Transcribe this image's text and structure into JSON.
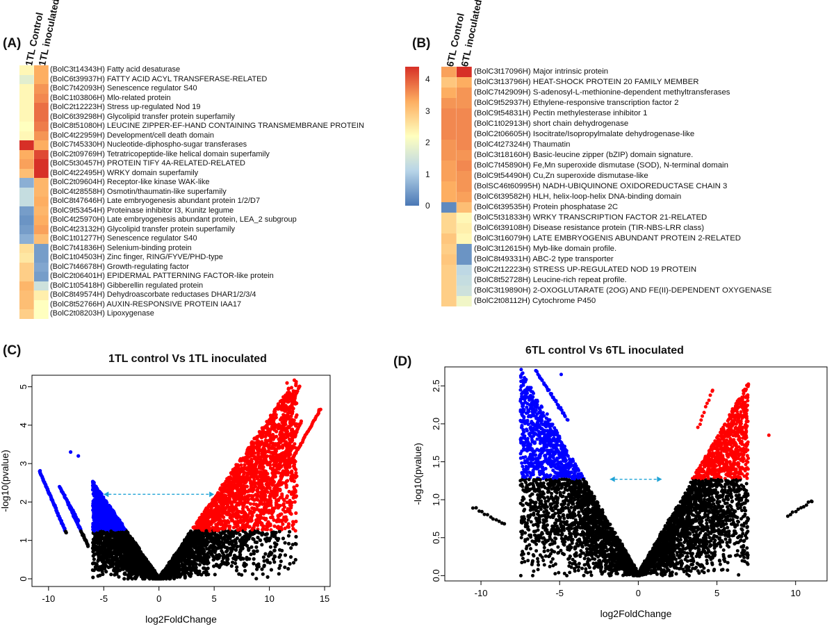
{
  "panelA": {
    "label": "(A)",
    "columns": [
      "1TL Control",
      "1TL inoculated"
    ],
    "rows": [
      {
        "name": "(BolC3t14343H) Fatty acid desaturase",
        "v": [
          2.1,
          3.0
        ]
      },
      {
        "name": "(BolC6t39937H) FATTY ACID ACYL TRANSFERASE-RELATED",
        "v": [
          1.6,
          3.0
        ]
      },
      {
        "name": "(BolC7t42093H) Senescence regulator S40",
        "v": [
          2.1,
          3.2
        ]
      },
      {
        "name": "(BolC1t03806H) Mlo-related protein",
        "v": [
          2.1,
          3.3
        ]
      },
      {
        "name": "(BolC2t12223H) Stress up-regulated Nod 19",
        "v": [
          2.1,
          3.5
        ]
      },
      {
        "name": "(BolC6t39298H) Glycolipid transfer protein superfamily",
        "v": [
          2.1,
          3.5
        ]
      },
      {
        "name": "(BolC8t51080H) LEUCINE ZIPPER-EF-HAND CONTAINING TRANSMEMBRANE PROTEIN",
        "v": [
          2.0,
          3.4
        ]
      },
      {
        "name": "(BolC4t22959H) Development/cell death domain",
        "v": [
          2.1,
          3.2
        ]
      },
      {
        "name": "(BolC7t45330H) Nucleotide-diphospho-sugar transferases",
        "v": [
          4.3,
          3.0
        ]
      },
      {
        "name": "(BolC2t09769H) Tetratricopeptide-like helical domain superfamily",
        "v": [
          3.0,
          3.8
        ]
      },
      {
        "name": "(BolC5t30457H) PROTEIN TIFY 4A-RELATED-RELATED",
        "v": [
          3.1,
          4.1
        ]
      },
      {
        "name": "(BolC4t22495H) WRKY domain superfamily",
        "v": [
          2.8,
          4.3
        ]
      },
      {
        "name": "(BolC2t09604H) Receptor-like kinase WAK-like",
        "v": [
          0.6,
          2.9
        ]
      },
      {
        "name": "(BolC4t28558H) Osmotin/thaumatin-like superfamily",
        "v": [
          1.2,
          2.9
        ]
      },
      {
        "name": "(BolC8t47646H) Late embryogenesis abundant protein 1/2/D7",
        "v": [
          1.2,
          3.0
        ]
      },
      {
        "name": "(BolC9t53454H) Proteinase inhibitor I3, Kunitz legume",
        "v": [
          0.4,
          2.9
        ]
      },
      {
        "name": "(BolC4t25970H) Late embryogenesis abundant protein, LEA_2 subgroup",
        "v": [
          0.3,
          3.0
        ]
      },
      {
        "name": "(BolC4t23132H) Glycolipid transfer protein superfamily",
        "v": [
          0.4,
          3.1
        ]
      },
      {
        "name": "(BolC1t01277H) Senescence regulator S40",
        "v": [
          0.6,
          2.8
        ]
      },
      {
        "name": "(BolC7t41836H) Selenium-binding protein",
        "v": [
          2.4,
          0.4
        ]
      },
      {
        "name": "(BolC1t04503H) Zinc finger, RING/FYVE/PHD-type",
        "v": [
          2.3,
          0.4
        ]
      },
      {
        "name": "(BolC7t46678H) Growth-regulating factor",
        "v": [
          2.6,
          0.5
        ]
      },
      {
        "name": "(BolC2t06401H) EPIDERMAL PATTERNING FACTOR-like protein",
        "v": [
          2.6,
          0.4
        ]
      },
      {
        "name": "(BolC1t05418H) Gibberellin regulated protein",
        "v": [
          2.9,
          1.3
        ]
      },
      {
        "name": "(BolC8t49574H) Dehydroascorbate reductases DHAR1/2/3/4",
        "v": [
          2.8,
          2.2
        ]
      },
      {
        "name": "(BolC8t52766H) AUXIN-RESPONSIVE PROTEIN IAA17",
        "v": [
          2.8,
          2.0
        ]
      },
      {
        "name": "(BolC2t08203H) Lipoxygenase",
        "v": [
          2.6,
          2.0
        ]
      }
    ]
  },
  "panelB": {
    "label": "(B)",
    "columns": [
      "6TL Control",
      "6TL inoculated"
    ],
    "rows": [
      {
        "name": "(BolC3t17096H) Major intrinsic protein",
        "v": [
          3.1,
          4.4
        ]
      },
      {
        "name": "(BolC3t13796H) HEAT-SHOCK PROTEIN 20 FAMILY MEMBER",
        "v": [
          2.7,
          3.0
        ]
      },
      {
        "name": "(BolC7t42909H) S-adenosyl-L-methionine-dependent methyltransferases",
        "v": [
          3.0,
          3.2
        ]
      },
      {
        "name": "(BolC9t52937H) Ethylene-responsive transcription factor 2",
        "v": [
          3.2,
          3.2
        ]
      },
      {
        "name": "(BolC9t54831H) Pectin methylesterase inhibitor 1",
        "v": [
          3.3,
          3.3
        ]
      },
      {
        "name": "(BolC1t02913H) short chain dehydrogenase",
        "v": [
          3.3,
          3.3
        ]
      },
      {
        "name": "(BolC2t06605H) Isocitrate/Isopropylmalate dehydrogenase-like",
        "v": [
          3.3,
          3.3
        ]
      },
      {
        "name": "(BolC4t27324H) Thaumatin",
        "v": [
          3.2,
          3.3
        ]
      },
      {
        "name": "(BolC3t18160H) Basic-leucine zipper (bZIP) domain signature.",
        "v": [
          3.2,
          3.2
        ]
      },
      {
        "name": "(BolC7t45890H) Fe,Mn superoxide dismutase (SOD), N-terminal domain",
        "v": [
          3.1,
          3.3
        ]
      },
      {
        "name": "(BolC9t54490H) Cu,Zn superoxide dismutase-like",
        "v": [
          3.1,
          3.2
        ]
      },
      {
        "name": "(BolSC46t60995H) NADH-UBIQUINONE OXIDOREDUCTASE CHAIN 3",
        "v": [
          3.0,
          3.2
        ]
      },
      {
        "name": "(BolC6t39582H) HLH, helix-loop-helix DNA-binding domain",
        "v": [
          3.0,
          3.1
        ]
      },
      {
        "name": "(BolC6t39535H) Protein phosphatase 2C",
        "v": [
          0.2,
          2.8
        ]
      },
      {
        "name": "(BolC5t31833H) WRKY TRANSCRIPTION FACTOR 21-RELATED",
        "v": [
          2.5,
          2.1
        ]
      },
      {
        "name": "(BolC6t39108H) Disease resistance protein (TIR-NBS-LRR class)",
        "v": [
          2.5,
          2.2
        ]
      },
      {
        "name": "(BolC3t16079H) LATE EMBRYOGENIS ABUNDANT PROTEIN 2-RELATED",
        "v": [
          2.7,
          2.1
        ]
      },
      {
        "name": "(BolC3t12615H) Myb-like domain profile.",
        "v": [
          2.6,
          0.3
        ]
      },
      {
        "name": "(BolC8t49331H) ABC-2 type transporter",
        "v": [
          2.7,
          0.3
        ]
      },
      {
        "name": "(BolC2t12223H) STRESS UP-REGULATED NOD 19 PROTEIN",
        "v": [
          2.6,
          1.1
        ]
      },
      {
        "name": "(BolC8t52728H) Leucine-rich repeat profile.",
        "v": [
          2.6,
          1.2
        ]
      },
      {
        "name": "(BolC3t19890H) 2-OXOGLUTARATE (2OG) AND FE(II)-DEPENDENT OXYGENASE",
        "v": [
          2.6,
          1.3
        ]
      },
      {
        "name": "(BolC2t08112H) Cytochrome P450",
        "v": [
          2.6,
          1.8
        ]
      }
    ]
  },
  "colorbar": {
    "ticks": [
      "0",
      "1",
      "2",
      "3",
      "4"
    ],
    "stops": [
      "#4a78b5",
      "#b7d4e8",
      "#ffffbf",
      "#fdae61",
      "#d73027"
    ]
  },
  "chart_data": [
    {
      "type": "scatter",
      "panel_label": "(C)",
      "title": "1TL control Vs 1TL inoculated",
      "xlabel": "log2FoldChange",
      "ylabel": "-log10(pvalue)",
      "xlim": [
        -11.5,
        15.5
      ],
      "ylim": [
        -0.2,
        5.3
      ],
      "xticks": [
        "-10",
        "-5",
        "0",
        "5",
        "10",
        "15"
      ],
      "xtick_values": [
        -10,
        -5,
        0,
        5,
        10,
        15
      ],
      "yticks": [
        "0",
        "1",
        "2",
        "3",
        "4",
        "5"
      ],
      "ytick_values": [
        0,
        1,
        2,
        3,
        4,
        5
      ],
      "threshold_y": 1.25,
      "arrow": {
        "x1": -5.0,
        "x2": 5.0,
        "y": 2.2
      },
      "series": [
        {
          "name": "not significant",
          "color": "#000000"
        },
        {
          "name": "down-regulated",
          "color": "#0000ff"
        },
        {
          "name": "up-regulated",
          "color": "#ff0000"
        }
      ],
      "key_points": [
        {
          "x": -10.8,
          "y": 2.8
        },
        {
          "x": -8.0,
          "y": 3.3
        },
        {
          "x": -7.3,
          "y": 3.2
        },
        {
          "x": 11.6,
          "y": 5.1
        },
        {
          "x": 12.7,
          "y": 5.0
        },
        {
          "x": 14.5,
          "y": 4.4
        }
      ]
    },
    {
      "type": "scatter",
      "panel_label": "(D)",
      "title": "6TL control Vs 6TL inoculated",
      "xlabel": "log2FoldChange",
      "ylabel": "-log10(pvalue)",
      "xlim": [
        -12.3,
        12.0
      ],
      "ylim": [
        -0.07,
        2.75
      ],
      "xticks": [
        "-10",
        "-5",
        "0",
        "5",
        "10"
      ],
      "xtick_values": [
        -10,
        -5,
        0,
        5,
        10
      ],
      "yticks": [
        "0.0",
        "0.5",
        "1.0",
        "1.5",
        "2.0",
        "2.5"
      ],
      "ytick_values": [
        0.0,
        0.5,
        1.0,
        1.5,
        2.0,
        2.5
      ],
      "threshold_y": 1.27,
      "arrow": {
        "x1": -1.8,
        "x2": 1.5,
        "y": 1.27
      },
      "series": [
        {
          "name": "not significant",
          "color": "#000000"
        },
        {
          "name": "down-regulated",
          "color": "#0000ff"
        },
        {
          "name": "up-regulated",
          "color": "#ff0000"
        }
      ],
      "key_points": [
        {
          "x": -6.5,
          "y": 2.7
        },
        {
          "x": -4.9,
          "y": 2.65
        },
        {
          "x": 4.7,
          "y": 2.43
        },
        {
          "x": 6.6,
          "y": 2.35
        },
        {
          "x": 8.3,
          "y": 1.85
        },
        {
          "x": 11.0,
          "y": 0.98
        }
      ]
    }
  ]
}
